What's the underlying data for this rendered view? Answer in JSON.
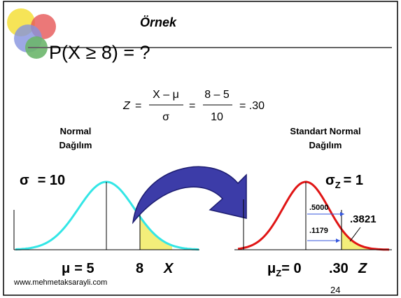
{
  "header": {
    "title": "Örnek",
    "question": "P(X ≥ 8) = ?"
  },
  "formula": {
    "lhs": "Z",
    "eq1": "=",
    "num1": "X – μ",
    "den1": "σ",
    "eq2": "=",
    "num2": "8 – 5",
    "den2": "10",
    "result": "= .30"
  },
  "left_panel": {
    "label_line1": "Normal",
    "label_line2": "Dağılım",
    "sigma": "σ",
    "sigma_value": "= 10",
    "mu": "μ",
    "mu_value": "= 5",
    "x_value": "8",
    "x_symbol": "X"
  },
  "right_panel": {
    "label_line1": "Standart Normal",
    "label_line2": "Dağılım",
    "sigma": "σ",
    "sigma_sub": "Z",
    "sigma_value": "= 1",
    "area_half": ".5000",
    "area_mid": ".1179",
    "area_tail": ".3821",
    "mu": "μ",
    "mu_sub": "Z",
    "mu_value": "= 0",
    "z_value": ".30",
    "z_symbol": "Z"
  },
  "footer": {
    "url": "www.mehmetaksarayli.com",
    "page": "24"
  }
}
